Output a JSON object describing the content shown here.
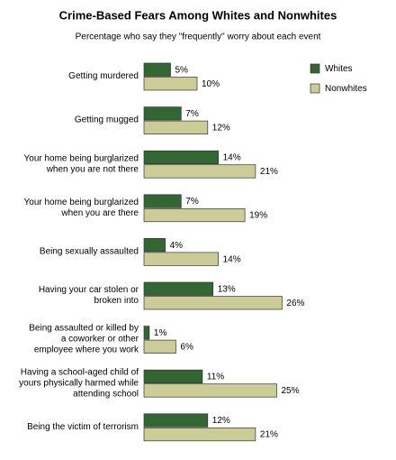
{
  "chart_data": {
    "type": "bar",
    "orientation": "horizontal",
    "title": "Crime-Based Fears Among Whites and Nonwhites",
    "subtitle": "Percentage who say they \"frequently\" worry about each event",
    "categories": [
      [
        "Getting murdered"
      ],
      [
        "Getting mugged"
      ],
      [
        "Your home being burglarized",
        "when you are not there"
      ],
      [
        "Your home being burglarized",
        "when you are there"
      ],
      [
        "Being sexually assaulted"
      ],
      [
        "Having your car stolen or",
        "broken into"
      ],
      [
        "Being assaulted or killed by",
        "a coworker or other",
        "employee where you work"
      ],
      [
        "Having a school-aged child of",
        "yours physically harmed while",
        "attending school"
      ],
      [
        "Being the victim of terrorism"
      ]
    ],
    "series": [
      {
        "name": "Whites",
        "color": "#336633",
        "values": [
          5,
          7,
          14,
          7,
          4,
          13,
          1,
          11,
          12
        ],
        "value_labels": [
          "5%",
          "7%",
          "14%",
          "7%",
          "4%",
          "13%",
          "1%",
          "11%",
          "12%"
        ]
      },
      {
        "name": "Nonwhites",
        "color": "#cccc99",
        "values": [
          10,
          12,
          21,
          19,
          14,
          26,
          6,
          25,
          21
        ],
        "value_labels": [
          "10%",
          "12%",
          "21%",
          "19%",
          "14%",
          "26%",
          "6%",
          "25%",
          "21%"
        ]
      }
    ],
    "legend": "top-right"
  }
}
